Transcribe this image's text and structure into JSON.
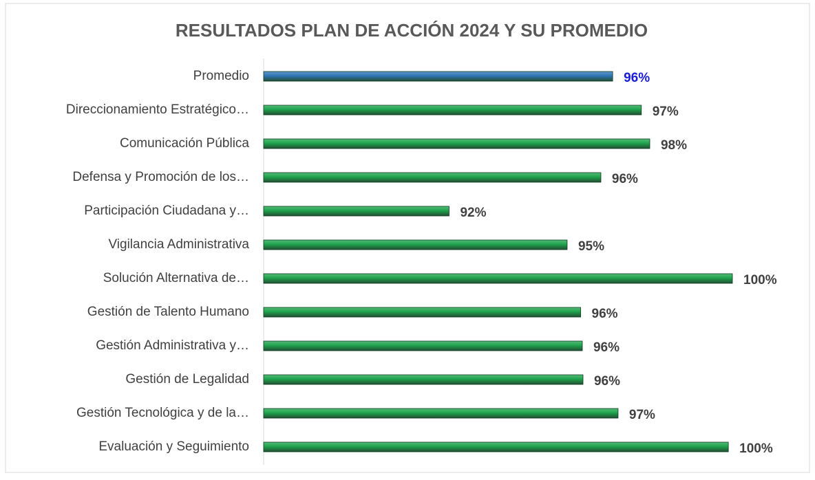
{
  "chart_data": {
    "type": "hbar",
    "title": "RESULTADOS PLAN DE ACCIÓN 2024 Y SU PROMEDIO",
    "categories": [
      "Promedio",
      "Direccionamiento Estratégico…",
      "Comunicación Pública",
      "Defensa y Promoción de los…",
      "Participación Ciudadana y…",
      "Vigilancia Administrativa",
      "Solución Alternativa de…",
      "Gestión de Talento Humano",
      "Gestión Administrativa y…",
      "Gestión de Legalidad",
      "Gestión Tecnológica y de la…",
      "Evaluación y Seguimiento"
    ],
    "values": [
      96.45,
      97.3,
      97.55,
      96.1,
      91.6,
      95.1,
      100.0,
      95.5,
      95.55,
      95.57,
      96.61,
      99.88
    ],
    "value_labels": [
      "96%",
      "97%",
      "98%",
      "96%",
      "92%",
      "95%",
      "100%",
      "96%",
      "96%",
      "96%",
      "97%",
      "100%"
    ],
    "colors": [
      "#2e75b6",
      "#1ea34c",
      "#1ea34c",
      "#1ea34c",
      "#1ea34c",
      "#1ea34c",
      "#1ea34c",
      "#1ea34c",
      "#1ea34c",
      "#1ea34c",
      "#1ea34c",
      "#1ea34c"
    ],
    "value_label_colors": [
      "#1a1adb",
      "#404040",
      "#404040",
      "#404040",
      "#404040",
      "#404040",
      "#404040",
      "#404040",
      "#404040",
      "#404040",
      "#404040",
      "#404040"
    ],
    "xlim": [
      86.1,
      102
    ]
  }
}
